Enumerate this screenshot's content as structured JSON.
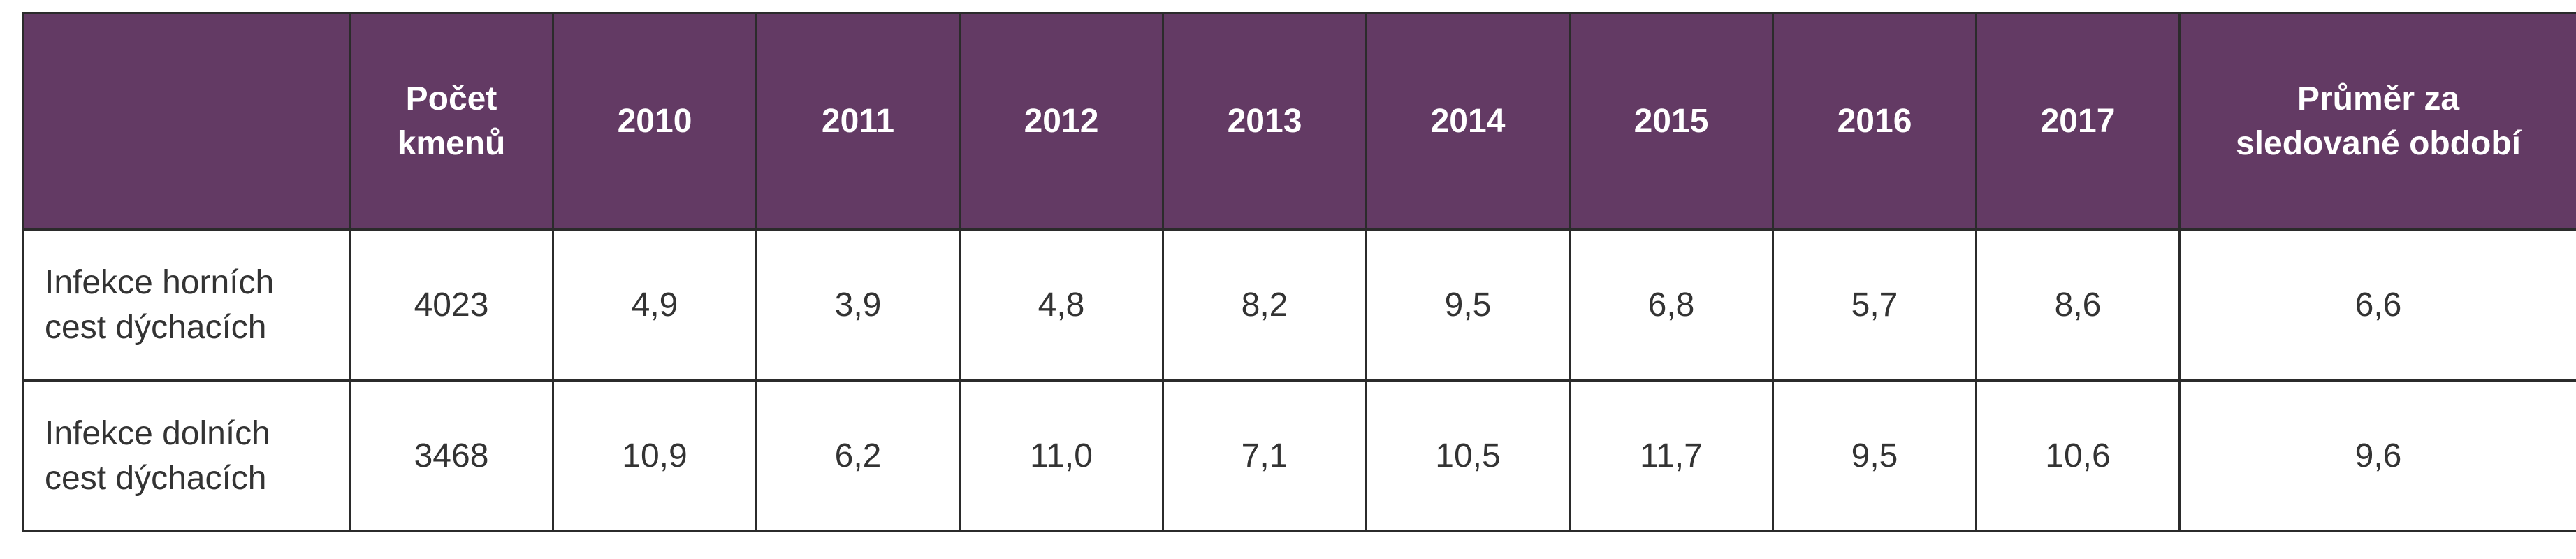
{
  "table": {
    "header": {
      "corner": "",
      "count_line1": "Počet",
      "count_line2": "kmenů",
      "years": [
        "2010",
        "2011",
        "2012",
        "2013",
        "2014",
        "2015",
        "2016",
        "2017"
      ],
      "avg_line1": "Průměr za",
      "avg_line2": "sledované období"
    },
    "rows": [
      {
        "label_line1": "Infekce horních",
        "label_line2": "cest dýchacích",
        "count": "4023",
        "values": [
          "4,9",
          "3,9",
          "4,8",
          "8,2",
          "9,5",
          "6,8",
          "5,7",
          "8,6"
        ],
        "average": "6,6"
      },
      {
        "label_line1": "Infekce dolních",
        "label_line2": "cest dýchacích",
        "count": "3468",
        "values": [
          "10,9",
          "6,2",
          "11,0",
          "7,1",
          "10,5",
          "11,7",
          "9,5",
          "10,6"
        ],
        "average": "9,6"
      }
    ]
  },
  "colors": {
    "header_bg": "#633a64",
    "header_text": "#ffffff",
    "border": "#2b2b2b",
    "body_text": "#333333"
  }
}
